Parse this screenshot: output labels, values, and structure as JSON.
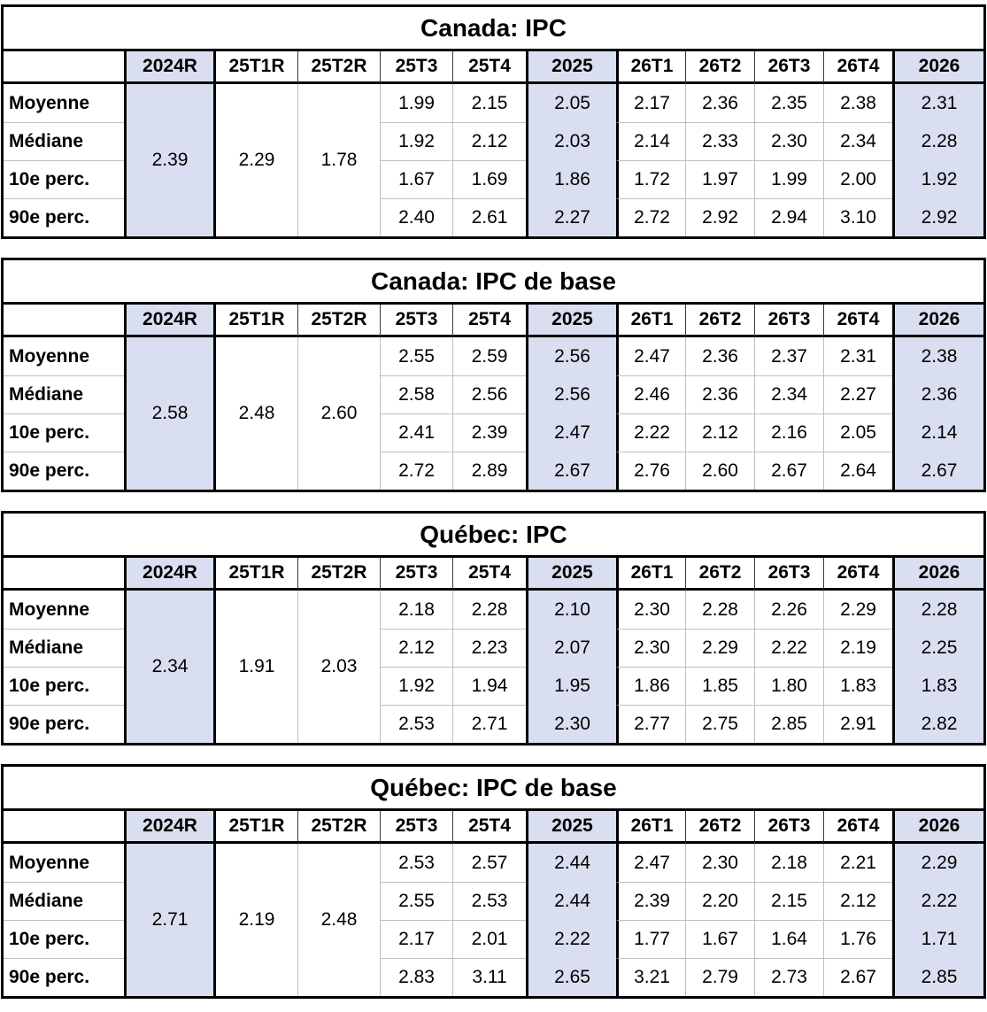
{
  "colors": {
    "shade": "#d9dff0",
    "grid_light": "#bfbfbf",
    "grid_dark": "#000000",
    "header_separator": "#3a3a3a"
  },
  "columns": [
    {
      "label": "",
      "type": "corner"
    },
    {
      "label": "2024R",
      "shaded": true,
      "merged": true,
      "thick_left": true
    },
    {
      "label": "25T1R",
      "merged": true,
      "thick_left": true
    },
    {
      "label": "25T2R",
      "merged": true
    },
    {
      "label": "25T3"
    },
    {
      "label": "25T4"
    },
    {
      "label": "2025",
      "shaded": true,
      "thick_left": true
    },
    {
      "label": "26T1",
      "thick_left": true
    },
    {
      "label": "26T2"
    },
    {
      "label": "26T3"
    },
    {
      "label": "26T4"
    },
    {
      "label": "2026",
      "shaded": true,
      "thick_left": true
    }
  ],
  "value_columns": [
    "25T3",
    "25T4",
    "2025",
    "26T1",
    "26T2",
    "26T3",
    "26T4",
    "2026"
  ],
  "merged_columns": [
    "2024R",
    "25T1R",
    "25T2R"
  ],
  "chart_data": [
    {
      "type": "table",
      "title": "Canada: IPC",
      "merged_values": [
        "2.39",
        "2.29",
        "1.78"
      ],
      "rows": [
        {
          "label": "Moyenne",
          "values": [
            "1.99",
            "2.15",
            "2.05",
            "2.17",
            "2.36",
            "2.35",
            "2.38",
            "2.31"
          ]
        },
        {
          "label": "Médiane",
          "values": [
            "1.92",
            "2.12",
            "2.03",
            "2.14",
            "2.33",
            "2.30",
            "2.34",
            "2.28"
          ]
        },
        {
          "label": "10e perc.",
          "values": [
            "1.67",
            "1.69",
            "1.86",
            "1.72",
            "1.97",
            "1.99",
            "2.00",
            "1.92"
          ]
        },
        {
          "label": "90e perc.",
          "values": [
            "2.40",
            "2.61",
            "2.27",
            "2.72",
            "2.92",
            "2.94",
            "3.10",
            "2.92"
          ]
        }
      ]
    },
    {
      "type": "table",
      "title": "Canada: IPC de base",
      "merged_values": [
        "2.58",
        "2.48",
        "2.60"
      ],
      "rows": [
        {
          "label": "Moyenne",
          "values": [
            "2.55",
            "2.59",
            "2.56",
            "2.47",
            "2.36",
            "2.37",
            "2.31",
            "2.38"
          ]
        },
        {
          "label": "Médiane",
          "values": [
            "2.58",
            "2.56",
            "2.56",
            "2.46",
            "2.36",
            "2.34",
            "2.27",
            "2.36"
          ]
        },
        {
          "label": "10e perc.",
          "values": [
            "2.41",
            "2.39",
            "2.47",
            "2.22",
            "2.12",
            "2.16",
            "2.05",
            "2.14"
          ]
        },
        {
          "label": "90e perc.",
          "values": [
            "2.72",
            "2.89",
            "2.67",
            "2.76",
            "2.60",
            "2.67",
            "2.64",
            "2.67"
          ]
        }
      ]
    },
    {
      "type": "table",
      "title": "Québec: IPC",
      "merged_values": [
        "2.34",
        "1.91",
        "2.03"
      ],
      "rows": [
        {
          "label": "Moyenne",
          "values": [
            "2.18",
            "2.28",
            "2.10",
            "2.30",
            "2.28",
            "2.26",
            "2.29",
            "2.28"
          ]
        },
        {
          "label": "Médiane",
          "values": [
            "2.12",
            "2.23",
            "2.07",
            "2.30",
            "2.29",
            "2.22",
            "2.19",
            "2.25"
          ]
        },
        {
          "label": "10e perc.",
          "values": [
            "1.92",
            "1.94",
            "1.95",
            "1.86",
            "1.85",
            "1.80",
            "1.83",
            "1.83"
          ]
        },
        {
          "label": "90e perc.",
          "values": [
            "2.53",
            "2.71",
            "2.30",
            "2.77",
            "2.75",
            "2.85",
            "2.91",
            "2.82"
          ]
        }
      ]
    },
    {
      "type": "table",
      "title": "Québec: IPC de base",
      "merged_values": [
        "2.71",
        "2.19",
        "2.48"
      ],
      "rows": [
        {
          "label": "Moyenne",
          "values": [
            "2.53",
            "2.57",
            "2.44",
            "2.47",
            "2.30",
            "2.18",
            "2.21",
            "2.29"
          ]
        },
        {
          "label": "Médiane",
          "values": [
            "2.55",
            "2.53",
            "2.44",
            "2.39",
            "2.20",
            "2.15",
            "2.12",
            "2.22"
          ]
        },
        {
          "label": "10e perc.",
          "values": [
            "2.17",
            "2.01",
            "2.22",
            "1.77",
            "1.67",
            "1.64",
            "1.76",
            "1.71"
          ]
        },
        {
          "label": "90e perc.",
          "values": [
            "2.83",
            "3.11",
            "2.65",
            "3.21",
            "2.79",
            "2.73",
            "2.67",
            "2.85"
          ]
        }
      ]
    }
  ]
}
